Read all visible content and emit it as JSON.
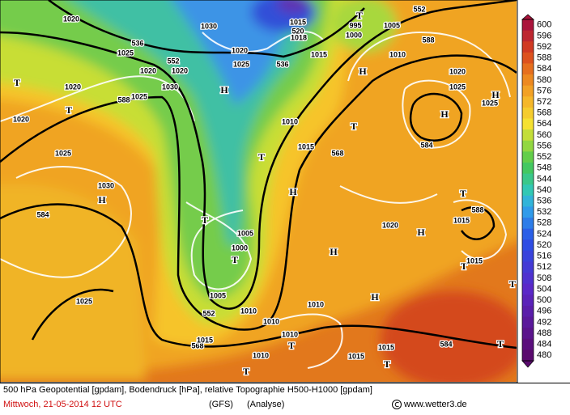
{
  "map": {
    "labels": [
      "1020",
      "1030",
      "1025",
      "536",
      "552",
      "1020",
      "1020",
      "1030",
      "1020",
      "1025",
      "536",
      "H",
      "T",
      "1020",
      "588",
      "1025",
      "T",
      "1020",
      "1025",
      "H",
      "1030",
      "584",
      "1025",
      "T",
      "1005",
      "1000",
      "T",
      "1005",
      "552",
      "1010",
      "568",
      "1015",
      "1010",
      "T",
      "1010",
      "T",
      "1010",
      "1015",
      "T",
      "1015",
      "584",
      "T",
      "H",
      "H",
      "T",
      "1015",
      "1010",
      "H",
      "1020",
      "H",
      "1015",
      "568",
      "T",
      "1010",
      "T",
      "H",
      "1010",
      "588",
      "552",
      "T",
      "1005",
      "520",
      "1015",
      "1018",
      "995",
      "1000",
      "1015",
      "1020",
      "1025",
      "H",
      "584",
      "T",
      "588",
      "1015",
      "H",
      "1025",
      "T"
    ]
  },
  "legend": {
    "values": [
      600,
      596,
      592,
      588,
      584,
      580,
      576,
      572,
      568,
      564,
      560,
      556,
      552,
      548,
      544,
      540,
      536,
      532,
      528,
      524,
      520,
      516,
      512,
      508,
      504,
      500,
      496,
      492,
      488,
      484,
      480
    ]
  },
  "footer": {
    "description": "500 hPa Geopotential [gpdam], Bodendruck [hPa], relative Topographie H500-H1000 [gpdam]",
    "date": "Mittwoch, 21-05-2014  12 UTC",
    "model": "(GFS)",
    "run": "(Analyse)",
    "source": "www.wetter3.de"
  }
}
